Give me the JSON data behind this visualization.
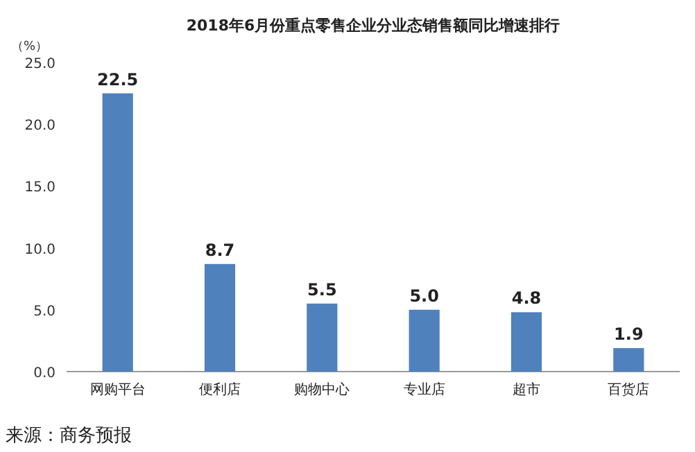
{
  "chart_data": {
    "type": "bar",
    "title": "2018年6月份重点零售企业分业态销售额同比增速排行",
    "ylabel": "（%）",
    "categories": [
      "网购平台",
      "便利店",
      "购物中心",
      "专业店",
      "超市",
      "百货店"
    ],
    "values": [
      22.5,
      8.7,
      5.5,
      5.0,
      4.8,
      1.9
    ],
    "color": "#4f81bd",
    "ylim": [
      0,
      25
    ],
    "yticks": [
      {
        "value": 0,
        "label": "0.0"
      },
      {
        "value": 5,
        "label": "5.0"
      },
      {
        "value": 10,
        "label": "10.0"
      },
      {
        "value": 15,
        "label": "15.0"
      },
      {
        "value": 20,
        "label": "20.0"
      },
      {
        "value": 25,
        "label": "25.0"
      }
    ],
    "value_labels": [
      "22.5",
      "8.7",
      "5.5",
      "5.0",
      "4.8",
      "1.9"
    ],
    "grid": false,
    "annotations": [
      "来源：商务预报"
    ]
  }
}
